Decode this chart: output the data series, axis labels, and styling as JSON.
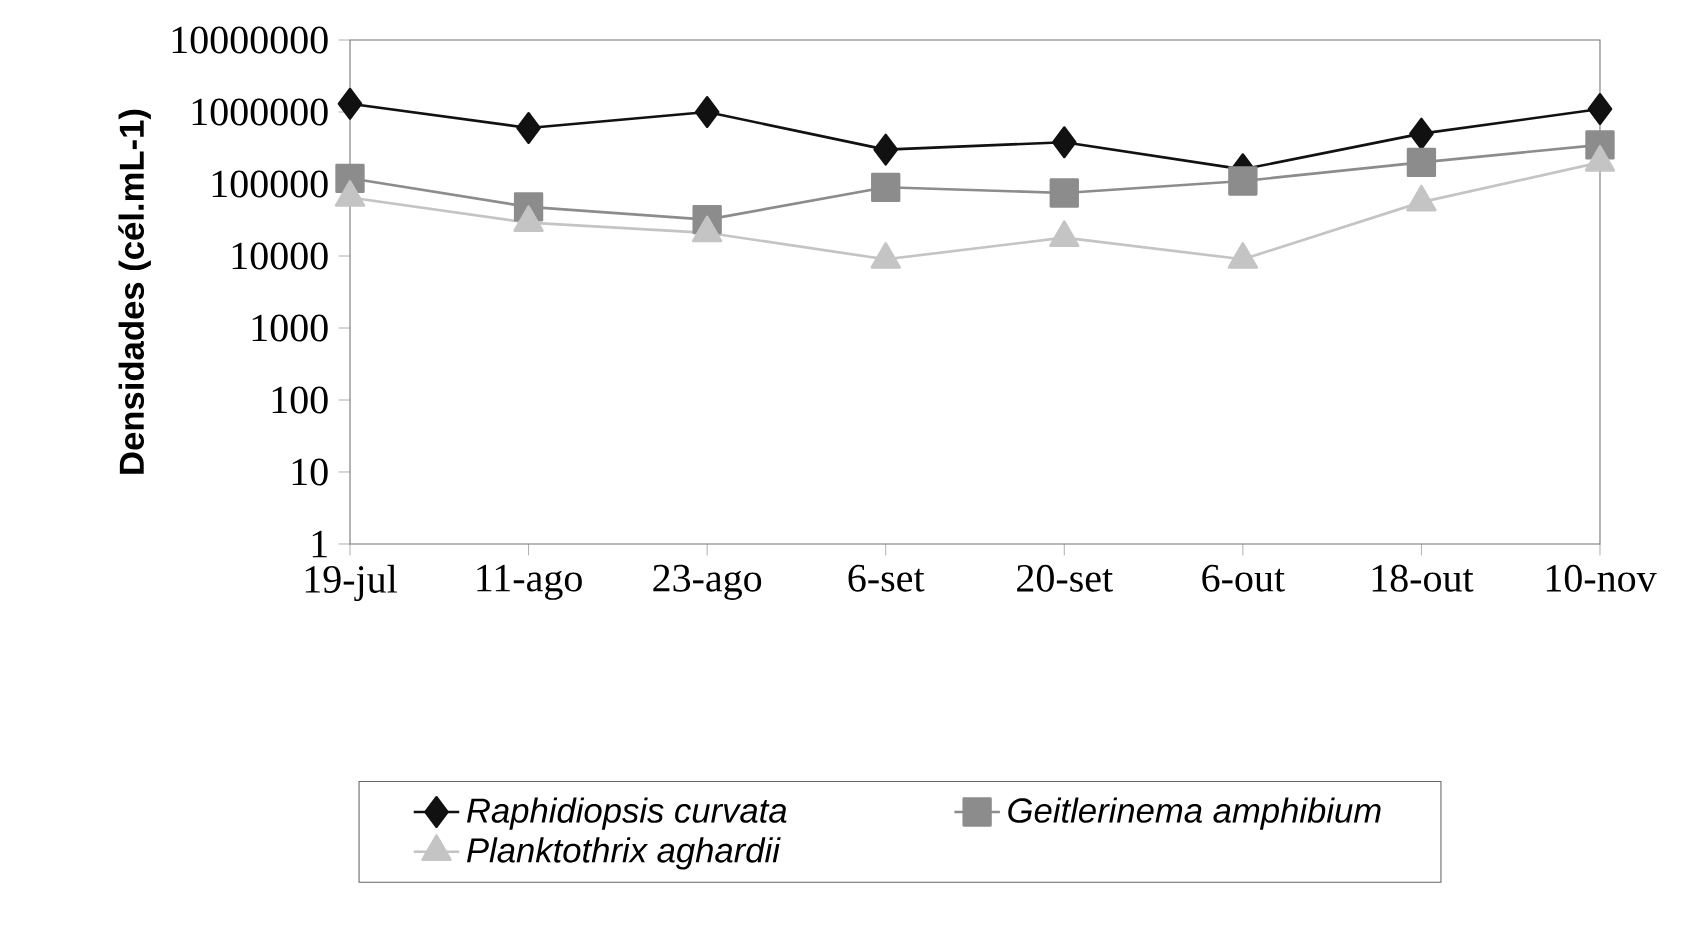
{
  "chart_data": {
    "type": "line",
    "ylabel": "Densidades (cél.mL-1)",
    "log": "y",
    "legend": "bottom",
    "categories": [
      "19-jul",
      "11-ago",
      "23-ago",
      "6-set",
      "20-set",
      "6-out",
      "18-out",
      "10-nov"
    ],
    "ylim": [
      1,
      10000000
    ],
    "yticks": [
      1,
      10,
      100,
      1000,
      10000,
      100000,
      1000000,
      10000000
    ],
    "series": [
      {
        "name": "Raphidiopsis curvata",
        "color": "#111111",
        "marker": "diamond",
        "values": [
          1300000,
          600000,
          1000000,
          300000,
          380000,
          160000,
          500000,
          1100000
        ]
      },
      {
        "name": "Geitlerinema amphibium",
        "color": "#8c8c8c",
        "marker": "square",
        "values": [
          120000,
          48000,
          32000,
          90000,
          75000,
          110000,
          200000,
          350000
        ]
      },
      {
        "name": "Planktothrix aghardii",
        "color": "#c4c4c4",
        "marker": "triangle",
        "values": [
          65000,
          29000,
          21000,
          9000,
          18000,
          9000,
          56000,
          200000
        ]
      }
    ]
  }
}
